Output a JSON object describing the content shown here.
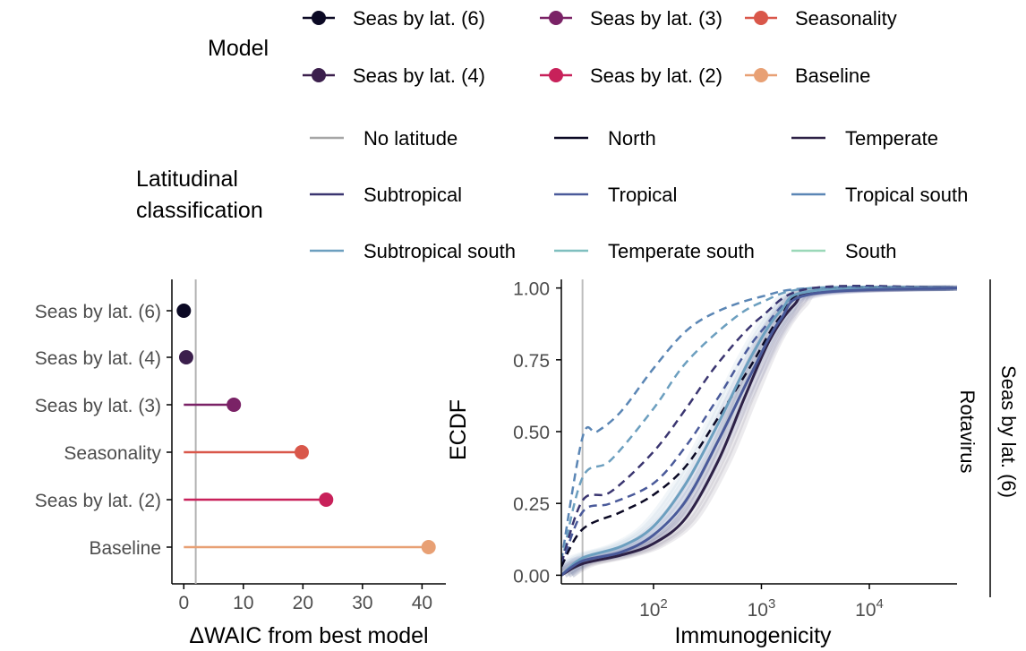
{
  "legend_model": {
    "title": "Model",
    "items": [
      {
        "label": "Seas by lat. (6)",
        "color": "#0b0924"
      },
      {
        "label": "Seas by lat. (3)",
        "color": "#7a2266"
      },
      {
        "label": "Seasonality",
        "color": "#d9574a"
      },
      {
        "label": "Seas by lat. (4)",
        "color": "#3b1f4c"
      },
      {
        "label": "Seas by lat. (2)",
        "color": "#c8215a"
      },
      {
        "label": "Baseline",
        "color": "#e8a074"
      }
    ]
  },
  "legend_lat": {
    "title_line1": "Latitudinal",
    "title_line2": "classification",
    "items": [
      {
        "label": "No latitude",
        "color": "#a6a6a6"
      },
      {
        "label": "North",
        "color": "#0b0924"
      },
      {
        "label": "Temperate",
        "color": "#2d2146"
      },
      {
        "label": "Subtropical",
        "color": "#3a3570"
      },
      {
        "label": "Tropical",
        "color": "#4a5a9a"
      },
      {
        "label": "Tropical south",
        "color": "#5b86b5"
      },
      {
        "label": "Subtropical south",
        "color": "#6c9fbf"
      },
      {
        "label": "Temperate south",
        "color": "#7fbfbf"
      },
      {
        "label": "South",
        "color": "#9ad8b8"
      }
    ]
  },
  "chart_data": [
    {
      "type": "lollipop",
      "xlabel": "ΔWAIC from best model",
      "ylabel": "",
      "xlim": [
        -2,
        44
      ],
      "x_ticks": [
        0,
        10,
        20,
        30,
        40
      ],
      "reference_line_x": 2,
      "categories": [
        "Seas by lat. (6)",
        "Seas by lat. (4)",
        "Seas by lat. (3)",
        "Seasonality",
        "Seas by lat. (2)",
        "Baseline"
      ],
      "values": [
        0,
        0.4,
        8.4,
        19.8,
        23.9,
        41.1
      ],
      "colors": [
        "#0b0924",
        "#3b1f4c",
        "#7a2266",
        "#d9574a",
        "#c8215a",
        "#e8a074"
      ]
    },
    {
      "type": "line",
      "xlabel": "Immunogenicity",
      "ylabel": "ECDF",
      "x_scale": "log10",
      "xlim": [
        14,
        65000
      ],
      "ylim": [
        -0.03,
        1.03
      ],
      "x_ticks": [
        "10^2",
        "10^3",
        "10^4"
      ],
      "x_tick_values": [
        100,
        1000,
        10000
      ],
      "y_ticks": [
        "0.00",
        "0.25",
        "0.50",
        "0.75",
        "1.00"
      ],
      "y_tick_values": [
        0,
        0.25,
        0.5,
        0.75,
        1
      ],
      "reference_line_x": 22,
      "facet_right": "Rotavirus",
      "facet_strip": "Seas by lat. (6)",
      "series": [
        {
          "color": "#5b86b5",
          "style": "dashed",
          "points": [
            [
              14,
              0.05
            ],
            [
              22,
              0.48
            ],
            [
              30,
              0.5
            ],
            [
              50,
              0.57
            ],
            [
              100,
              0.72
            ],
            [
              200,
              0.85
            ],
            [
              400,
              0.92
            ],
            [
              1000,
              0.97
            ],
            [
              3000,
              1.0
            ],
            [
              65000,
              1.0
            ]
          ]
        },
        {
          "color": "#6c9fbf",
          "style": "dashed",
          "points": [
            [
              14,
              0.04
            ],
            [
              22,
              0.34
            ],
            [
              40,
              0.4
            ],
            [
              100,
              0.58
            ],
            [
              200,
              0.74
            ],
            [
              500,
              0.88
            ],
            [
              1000,
              0.95
            ],
            [
              3000,
              1.0
            ],
            [
              65000,
              1.0
            ]
          ]
        },
        {
          "color": "#3a3570",
          "style": "dashed",
          "points": [
            [
              14,
              0.04
            ],
            [
              22,
              0.26
            ],
            [
              40,
              0.29
            ],
            [
              100,
              0.43
            ],
            [
              200,
              0.58
            ],
            [
              400,
              0.74
            ],
            [
              1000,
              0.9
            ],
            [
              3000,
              1.0
            ],
            [
              65000,
              1.0
            ]
          ]
        },
        {
          "color": "#4a5a9a",
          "style": "dashed",
          "points": [
            [
              14,
              0.03
            ],
            [
              22,
              0.22
            ],
            [
              40,
              0.25
            ],
            [
              100,
              0.32
            ],
            [
              200,
              0.45
            ],
            [
              400,
              0.62
            ],
            [
              1000,
              0.85
            ],
            [
              3000,
              0.99
            ],
            [
              65000,
              1.0
            ]
          ]
        },
        {
          "color": "#0b0924",
          "style": "dashed",
          "points": [
            [
              14,
              0.03
            ],
            [
              22,
              0.16
            ],
            [
              50,
              0.22
            ],
            [
              100,
              0.28
            ],
            [
              200,
              0.38
            ],
            [
              400,
              0.55
            ],
            [
              800,
              0.73
            ],
            [
              1500,
              0.9
            ],
            [
              3000,
              0.99
            ],
            [
              65000,
              1.0
            ]
          ]
        },
        {
          "color": "#2d2146",
          "style": "solid",
          "points": [
            [
              14,
              0.0
            ],
            [
              22,
              0.04
            ],
            [
              50,
              0.07
            ],
            [
              100,
              0.11
            ],
            [
              200,
              0.2
            ],
            [
              400,
              0.4
            ],
            [
              700,
              0.62
            ],
            [
              1200,
              0.82
            ],
            [
              2000,
              0.94
            ],
            [
              3500,
              0.99
            ],
            [
              65000,
              1.0
            ]
          ]
        },
        {
          "color": "#6c9fbf",
          "style": "solid",
          "points": [
            [
              14,
              0.0
            ],
            [
              22,
              0.06
            ],
            [
              50,
              0.1
            ],
            [
              100,
              0.17
            ],
            [
              200,
              0.32
            ],
            [
              400,
              0.53
            ],
            [
              800,
              0.76
            ],
            [
              1500,
              0.92
            ],
            [
              3000,
              0.99
            ],
            [
              65000,
              1.0
            ]
          ]
        },
        {
          "color": "#4a5a9a",
          "style": "solid",
          "points": [
            [
              14,
              0.0
            ],
            [
              22,
              0.05
            ],
            [
              50,
              0.08
            ],
            [
              100,
              0.14
            ],
            [
              200,
              0.26
            ],
            [
              400,
              0.47
            ],
            [
              800,
              0.7
            ],
            [
              1500,
              0.89
            ],
            [
              3000,
              0.98
            ],
            [
              65000,
              1.0
            ]
          ]
        }
      ]
    }
  ]
}
